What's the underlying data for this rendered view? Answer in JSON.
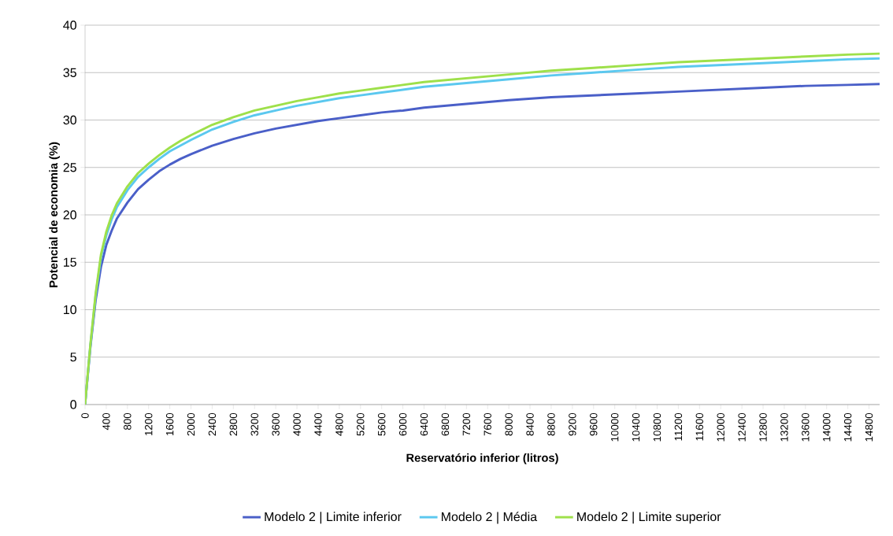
{
  "chart_data": {
    "type": "line",
    "xlabel": "Reservatório inferior (litros)",
    "ylabel": "Potencial de economia (%)",
    "x": [
      0,
      100,
      200,
      300,
      400,
      500,
      600,
      800,
      1000,
      1200,
      1400,
      1600,
      1800,
      2000,
      2400,
      2800,
      3200,
      3600,
      4000,
      4400,
      4800,
      5200,
      5600,
      6000,
      6400,
      6800,
      7200,
      7600,
      8000,
      8800,
      9600,
      10400,
      11200,
      12000,
      12800,
      13600,
      14400,
      15000
    ],
    "series": [
      {
        "name": "Modelo 2 | Limite inferior",
        "color": "#4a5fc8",
        "values": [
          0,
          6,
          11,
          14.5,
          16.8,
          18.3,
          19.6,
          21.3,
          22.7,
          23.7,
          24.6,
          25.3,
          25.9,
          26.4,
          27.3,
          28.0,
          28.6,
          29.1,
          29.5,
          29.9,
          30.2,
          30.5,
          30.8,
          31.0,
          31.3,
          31.5,
          31.7,
          31.9,
          32.1,
          32.4,
          32.6,
          32.8,
          33.0,
          33.2,
          33.4,
          33.6,
          33.7,
          33.8
        ]
      },
      {
        "name": "Modelo 2 | Média",
        "color": "#5bc8ef",
        "values": [
          0,
          6.2,
          11.5,
          15.5,
          17.8,
          19.5,
          20.8,
          22.6,
          24.0,
          25.0,
          25.9,
          26.7,
          27.3,
          27.9,
          29.0,
          29.8,
          30.5,
          31.0,
          31.5,
          31.9,
          32.3,
          32.6,
          32.9,
          33.2,
          33.5,
          33.7,
          33.9,
          34.1,
          34.3,
          34.7,
          35.0,
          35.3,
          35.6,
          35.8,
          36.0,
          36.2,
          36.4,
          36.5
        ]
      },
      {
        "name": "Modelo 2 | Limite superior",
        "color": "#9ee04a",
        "values": [
          0,
          6.3,
          11.7,
          15.8,
          18.2,
          19.9,
          21.2,
          23.0,
          24.4,
          25.4,
          26.3,
          27.1,
          27.8,
          28.4,
          29.5,
          30.3,
          31.0,
          31.5,
          32.0,
          32.4,
          32.8,
          33.1,
          33.4,
          33.7,
          34.0,
          34.2,
          34.4,
          34.6,
          34.8,
          35.2,
          35.5,
          35.8,
          36.1,
          36.3,
          36.5,
          36.7,
          36.9,
          37.0
        ]
      }
    ],
    "xlim": [
      0,
      15000
    ],
    "xticks": [
      0,
      400,
      800,
      1200,
      1600,
      2000,
      2400,
      2800,
      3200,
      3600,
      4000,
      4400,
      4800,
      5200,
      5600,
      6000,
      6400,
      6800,
      7200,
      7600,
      8000,
      8400,
      8800,
      9200,
      9600,
      10000,
      10400,
      10800,
      11200,
      11600,
      12000,
      12400,
      12800,
      13200,
      13600,
      14000,
      14400,
      14800
    ],
    "ylim": [
      0,
      40
    ],
    "yticks": [
      0,
      5,
      10,
      15,
      20,
      25,
      30,
      35,
      40
    ],
    "grid": "y",
    "legend": "bottom",
    "marker": "none",
    "line_style": "solid"
  }
}
